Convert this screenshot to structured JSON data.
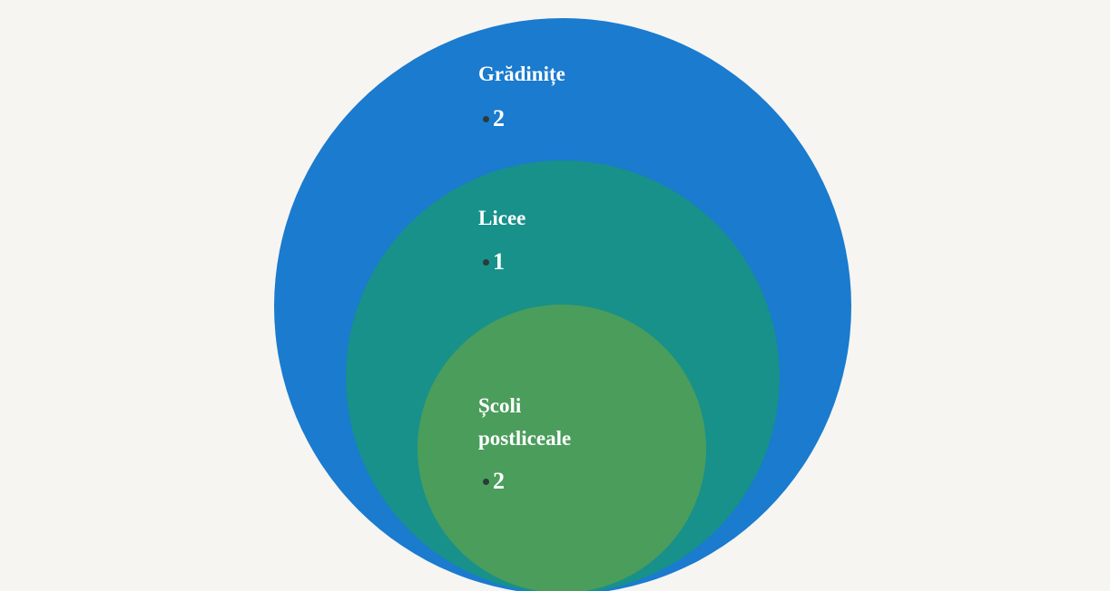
{
  "circles": [
    {
      "label": "Grădinițe",
      "value": 2
    },
    {
      "label": "Licee",
      "value": 1
    },
    {
      "label": "Școli postliceale",
      "value": 2
    }
  ]
}
